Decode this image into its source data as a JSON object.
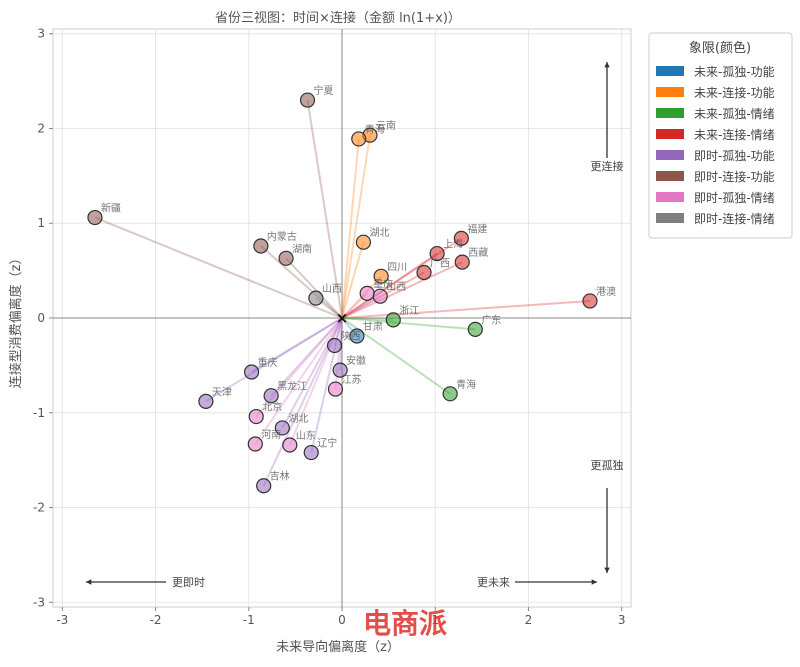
{
  "chart_data": {
    "type": "scatter",
    "title": "省份三视图：时间×连接（金额 ln(1+x)）",
    "xlabel": "未来导向偏离度（z）",
    "ylabel": "连接型消费偏离度（z）",
    "xlim": [
      -3.1,
      3.1
    ],
    "ylim": [
      -3.05,
      3.05
    ],
    "x_ticks": [
      -3,
      -2,
      -1,
      0,
      1,
      2,
      3
    ],
    "y_ticks": [
      -3,
      -2,
      -1,
      0,
      1,
      2,
      3
    ],
    "grid": true,
    "legend_position": "top-right, outside plot",
    "legend": {
      "title": "象限(颜色)",
      "entries": [
        {
          "label": "未来-孤独-功能",
          "color": "#1f77b4"
        },
        {
          "label": "未来-连接-功能",
          "color": "#ff7f0e"
        },
        {
          "label": "未来-孤独-情绪",
          "color": "#2ca02c"
        },
        {
          "label": "未来-连接-情绪",
          "color": "#d62728"
        },
        {
          "label": "即时-孤独-功能",
          "color": "#9467bd"
        },
        {
          "label": "即时-连接-功能",
          "color": "#8c564b"
        },
        {
          "label": "即时-孤独-情绪",
          "color": "#e377c2"
        },
        {
          "label": "即时-连接-情绪",
          "color": "#7f7f7f"
        }
      ]
    },
    "annotations": {
      "up": "更连接",
      "down": "更孤独",
      "left": "更即时",
      "right": "更未来"
    },
    "origin_marker": "×",
    "watermark": "电商派",
    "points": [
      {
        "label": "宁夏",
        "x": -0.37,
        "y": 2.3,
        "quadrant": 5
      },
      {
        "label": "云南",
        "x": 0.3,
        "y": 1.93,
        "quadrant": 1
      },
      {
        "label": "青海",
        "x": 0.18,
        "y": 1.89,
        "quadrant": 1
      },
      {
        "label": "新疆",
        "x": -2.65,
        "y": 1.06,
        "quadrant": 5
      },
      {
        "label": "福建",
        "x": 1.28,
        "y": 0.84,
        "quadrant": 3
      },
      {
        "label": "湖北",
        "x": 0.23,
        "y": 0.8,
        "quadrant": 1
      },
      {
        "label": "内蒙古",
        "x": -0.87,
        "y": 0.76,
        "quadrant": 5
      },
      {
        "label": "上海",
        "x": 1.02,
        "y": 0.68,
        "quadrant": 3
      },
      {
        "label": "湖南",
        "x": -0.6,
        "y": 0.63,
        "quadrant": 5
      },
      {
        "label": "西藏",
        "x": 1.29,
        "y": 0.59,
        "quadrant": 3
      },
      {
        "label": "广西",
        "x": 0.88,
        "y": 0.48,
        "quadrant": 3
      },
      {
        "label": "四川",
        "x": 0.42,
        "y": 0.44,
        "quadrant": 1
      },
      {
        "label": "重庆",
        "x": 0.27,
        "y": 0.26,
        "quadrant": 6
      },
      {
        "label": "山西",
        "x": 0.41,
        "y": 0.23,
        "quadrant": 6
      },
      {
        "label": "山西",
        "x": -0.28,
        "y": 0.21,
        "quadrant": 7
      },
      {
        "label": "港澳",
        "x": 2.66,
        "y": 0.18,
        "quadrant": 3
      },
      {
        "label": "浙江",
        "x": 0.55,
        "y": -0.02,
        "quadrant": 2
      },
      {
        "label": "广东",
        "x": 1.43,
        "y": -0.12,
        "quadrant": 2
      },
      {
        "label": "甘肃",
        "x": 0.16,
        "y": -0.19,
        "quadrant": 0
      },
      {
        "label": "陕西",
        "x": -0.08,
        "y": -0.29,
        "quadrant": 4
      },
      {
        "label": "安徽",
        "x": -0.02,
        "y": -0.55,
        "quadrant": 4
      },
      {
        "label": "重庆",
        "x": -0.97,
        "y": -0.57,
        "quadrant": 4
      },
      {
        "label": "江苏",
        "x": -0.07,
        "y": -0.75,
        "quadrant": 6
      },
      {
        "label": "青海",
        "x": 1.16,
        "y": -0.8,
        "quadrant": 2
      },
      {
        "label": "黑龙江",
        "x": -0.76,
        "y": -0.82,
        "quadrant": 4
      },
      {
        "label": "天津",
        "x": -1.46,
        "y": -0.88,
        "quadrant": 4
      },
      {
        "label": "北京",
        "x": -0.92,
        "y": -1.04,
        "quadrant": 6
      },
      {
        "label": "湖北",
        "x": -0.64,
        "y": -1.16,
        "quadrant": 4
      },
      {
        "label": "河南",
        "x": -0.93,
        "y": -1.33,
        "quadrant": 6
      },
      {
        "label": "山东",
        "x": -0.56,
        "y": -1.34,
        "quadrant": 6
      },
      {
        "label": "辽宁",
        "x": -0.33,
        "y": -1.42,
        "quadrant": 4
      },
      {
        "label": "吉林",
        "x": -0.84,
        "y": -1.77,
        "quadrant": 4
      }
    ]
  }
}
